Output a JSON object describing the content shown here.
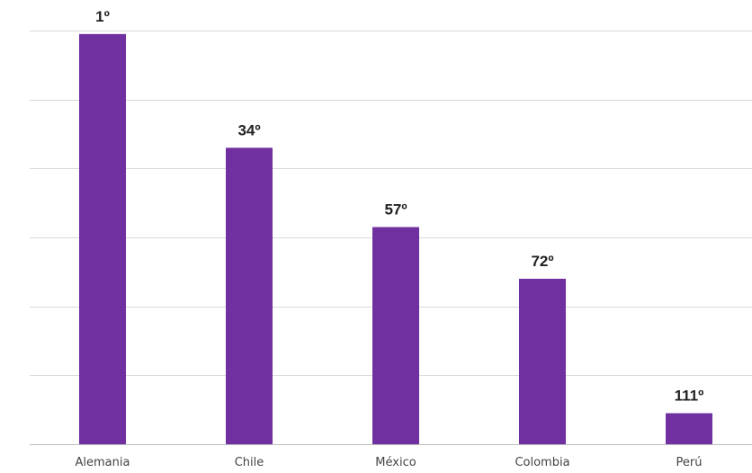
{
  "chart_data": {
    "type": "bar",
    "categories": [
      "Alemania",
      "Chile",
      "México",
      "Colombia",
      "Perú"
    ],
    "values": [
      1,
      34,
      57,
      72,
      111
    ],
    "value_labels": [
      "1º",
      "34º",
      "57º",
      "72º",
      "111º"
    ],
    "title": "",
    "xlabel": "",
    "ylabel": "",
    "y_axis": "reversed ranking (lower rank = taller bar)",
    "y_tick_labels_shown": false,
    "ylim": [
      120,
      0
    ],
    "grid": true,
    "legend": "none",
    "bar_color": "#7030a0"
  }
}
